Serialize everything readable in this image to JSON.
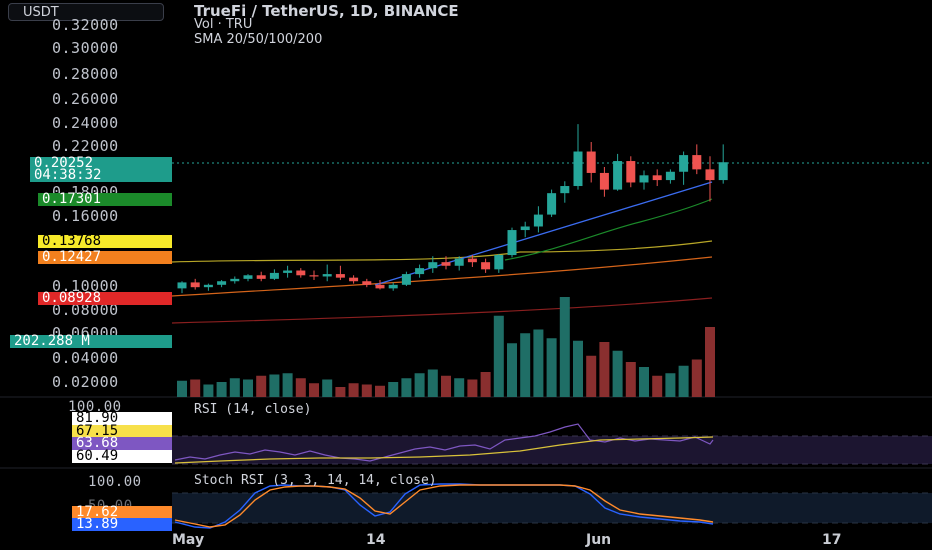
{
  "header": {
    "symbol_button": "USDT",
    "title": "TrueFi / TetherUS, 1D, BINANCE",
    "volume_line": "Vol · TRU",
    "sma_line": "SMA 20/50/100/200"
  },
  "price_axis": {
    "ticks": [
      "0.32000",
      "0.30000",
      "0.28000",
      "0.26000",
      "0.24000",
      "0.22000",
      "0.18000",
      "0.16000",
      "0.10000",
      "0.08000",
      "0.06000",
      "0.04000",
      "0.02000"
    ]
  },
  "badges": {
    "last_price": "0.20252",
    "countdown": "04:38:32",
    "sma20": "0.17301",
    "sma50": "0.13768",
    "sma100": "0.12427",
    "sma200": "0.08928",
    "volume": "202.288 M"
  },
  "colors": {
    "up": "#26a69a",
    "down": "#ef5350",
    "trendline": "#2962ff",
    "sma20": "#1b8a2a",
    "sma50": "#c9b42a",
    "sma100": "#f2801e",
    "sma200": "#c52a2a",
    "rsi": "#7e57c2",
    "rsi_ma": "#f7e04a",
    "stoch_k": "#2962ff",
    "stoch_d": "#ff8a2b"
  },
  "rsi_pane": {
    "title": "RSI (14, close)",
    "axis_top": "100.00",
    "values": [
      "81.90",
      "67.15",
      "63.68",
      "60.49"
    ]
  },
  "stoch_pane": {
    "title": "Stoch RSI (3, 3, 14, 14, close)",
    "axis_top": "100.00",
    "axis_mid": "50.00",
    "values": [
      "17.62",
      "13.89"
    ]
  },
  "time_axis": {
    "labels": [
      "May",
      "14",
      "Jun",
      "17"
    ]
  },
  "chart_data": {
    "type": "candlestick",
    "symbol": "TRU/USDT",
    "interval": "1D",
    "ylim": [
      0,
      0.33
    ],
    "candles": [
      {
        "o": 0.097,
        "h": 0.103,
        "l": 0.093,
        "c": 0.102
      },
      {
        "o": 0.102,
        "h": 0.105,
        "l": 0.096,
        "c": 0.098
      },
      {
        "o": 0.098,
        "h": 0.101,
        "l": 0.095,
        "c": 0.1
      },
      {
        "o": 0.1,
        "h": 0.104,
        "l": 0.098,
        "c": 0.103
      },
      {
        "o": 0.103,
        "h": 0.107,
        "l": 0.101,
        "c": 0.105
      },
      {
        "o": 0.105,
        "h": 0.109,
        "l": 0.103,
        "c": 0.108
      },
      {
        "o": 0.108,
        "h": 0.111,
        "l": 0.103,
        "c": 0.105
      },
      {
        "o": 0.105,
        "h": 0.113,
        "l": 0.104,
        "c": 0.11
      },
      {
        "o": 0.11,
        "h": 0.116,
        "l": 0.106,
        "c": 0.112
      },
      {
        "o": 0.112,
        "h": 0.114,
        "l": 0.106,
        "c": 0.108
      },
      {
        "o": 0.108,
        "h": 0.112,
        "l": 0.104,
        "c": 0.107
      },
      {
        "o": 0.107,
        "h": 0.117,
        "l": 0.103,
        "c": 0.109
      },
      {
        "o": 0.109,
        "h": 0.116,
        "l": 0.104,
        "c": 0.106
      },
      {
        "o": 0.106,
        "h": 0.108,
        "l": 0.101,
        "c": 0.103
      },
      {
        "o": 0.103,
        "h": 0.105,
        "l": 0.098,
        "c": 0.1
      },
      {
        "o": 0.1,
        "h": 0.104,
        "l": 0.096,
        "c": 0.097
      },
      {
        "o": 0.097,
        "h": 0.102,
        "l": 0.095,
        "c": 0.1
      },
      {
        "o": 0.1,
        "h": 0.111,
        "l": 0.099,
        "c": 0.109
      },
      {
        "o": 0.109,
        "h": 0.117,
        "l": 0.106,
        "c": 0.114
      },
      {
        "o": 0.114,
        "h": 0.124,
        "l": 0.11,
        "c": 0.119
      },
      {
        "o": 0.119,
        "h": 0.124,
        "l": 0.113,
        "c": 0.116
      },
      {
        "o": 0.116,
        "h": 0.124,
        "l": 0.112,
        "c": 0.122
      },
      {
        "o": 0.122,
        "h": 0.125,
        "l": 0.115,
        "c": 0.119
      },
      {
        "o": 0.119,
        "h": 0.122,
        "l": 0.11,
        "c": 0.113
      },
      {
        "o": 0.113,
        "h": 0.126,
        "l": 0.11,
        "c": 0.125
      },
      {
        "o": 0.125,
        "h": 0.148,
        "l": 0.123,
        "c": 0.146
      },
      {
        "o": 0.146,
        "h": 0.153,
        "l": 0.14,
        "c": 0.149
      },
      {
        "o": 0.149,
        "h": 0.166,
        "l": 0.144,
        "c": 0.159
      },
      {
        "o": 0.159,
        "h": 0.18,
        "l": 0.157,
        "c": 0.177
      },
      {
        "o": 0.177,
        "h": 0.187,
        "l": 0.169,
        "c": 0.183
      },
      {
        "o": 0.183,
        "h": 0.235,
        "l": 0.18,
        "c": 0.212
      },
      {
        "o": 0.212,
        "h": 0.22,
        "l": 0.186,
        "c": 0.194
      },
      {
        "o": 0.194,
        "h": 0.199,
        "l": 0.174,
        "c": 0.18
      },
      {
        "o": 0.18,
        "h": 0.21,
        "l": 0.179,
        "c": 0.204
      },
      {
        "o": 0.204,
        "h": 0.208,
        "l": 0.182,
        "c": 0.186
      },
      {
        "o": 0.186,
        "h": 0.196,
        "l": 0.18,
        "c": 0.192
      },
      {
        "o": 0.192,
        "h": 0.197,
        "l": 0.183,
        "c": 0.188
      },
      {
        "o": 0.188,
        "h": 0.197,
        "l": 0.185,
        "c": 0.195
      },
      {
        "o": 0.195,
        "h": 0.212,
        "l": 0.184,
        "c": 0.209
      },
      {
        "o": 0.209,
        "h": 0.218,
        "l": 0.193,
        "c": 0.197
      },
      {
        "o": 0.197,
        "h": 0.208,
        "l": 0.17,
        "c": 0.188
      },
      {
        "o": 0.188,
        "h": 0.218,
        "l": 0.185,
        "c": 0.203
      }
    ],
    "volume": [
      13,
      14,
      10,
      12,
      15,
      14,
      17,
      18,
      19,
      15,
      11,
      14,
      8,
      11,
      10,
      9,
      12,
      15,
      19,
      22,
      17,
      15,
      14,
      20,
      65,
      43,
      51,
      54,
      47,
      80,
      45,
      33,
      44,
      37,
      28,
      24,
      17,
      19,
      25,
      30,
      56
    ]
  }
}
